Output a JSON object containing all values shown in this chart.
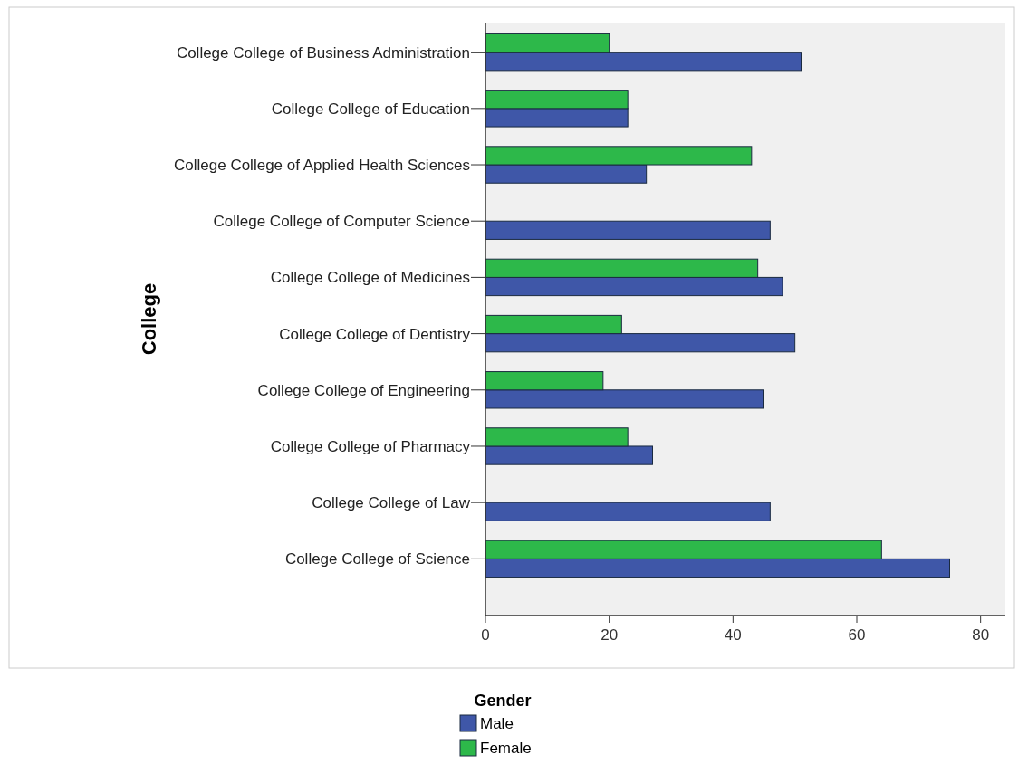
{
  "chart_data": {
    "type": "bar",
    "orientation": "horizontal",
    "ylabel": "College",
    "legend_title": "Gender",
    "legend": "bottom",
    "grid": false,
    "categories": [
      "College College of Business Administration",
      "College College of Education",
      "College College of Applied Health Sciences",
      "College College of Computer Science",
      "College College of Medicines",
      "College College of Dentistry",
      "College College of Engineering",
      "College College of Pharmacy",
      "College College of Law",
      "College College of Science"
    ],
    "series": [
      {
        "name": "Male",
        "color": "#3f57a8",
        "values": [
          51,
          23,
          26,
          46,
          48,
          50,
          45,
          27,
          46,
          75
        ]
      },
      {
        "name": "Female",
        "color": "#2db84a",
        "values": [
          20,
          23,
          43,
          0,
          44,
          22,
          19,
          23,
          0,
          64
        ]
      }
    ],
    "xlim": [
      0,
      84
    ],
    "xticks": [
      0,
      20,
      40,
      60,
      80
    ]
  }
}
